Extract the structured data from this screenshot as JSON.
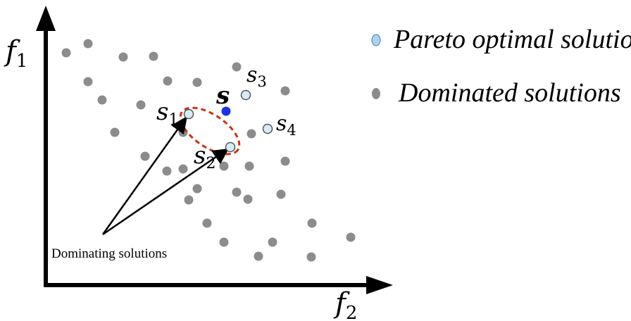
{
  "axes": {
    "y_label": "f",
    "y_sub": "1",
    "x_label": "f",
    "x_sub": "2"
  },
  "points": {
    "special_s": {
      "label": "s",
      "color": "#1a33e6"
    },
    "s1": {
      "label": "s",
      "sub": "1"
    },
    "s2": {
      "label": "s",
      "sub": "2"
    },
    "s3": {
      "label": "s",
      "sub": "3"
    },
    "s4": {
      "label": "s",
      "sub": "4"
    }
  },
  "annotation": {
    "text": "Dominating solutions"
  },
  "legend": {
    "items": [
      {
        "label": "Pareto optimal solutions",
        "color": "#a9d3f2"
      },
      {
        "label": "Dominated solutions",
        "color": "#8c8c8c"
      }
    ]
  },
  "colors": {
    "pareto_fill": "#d6ecf8",
    "pareto_stroke": "#555555",
    "dominated": "#8c8c8c",
    "highlight_ellipse": "#cc3311"
  }
}
